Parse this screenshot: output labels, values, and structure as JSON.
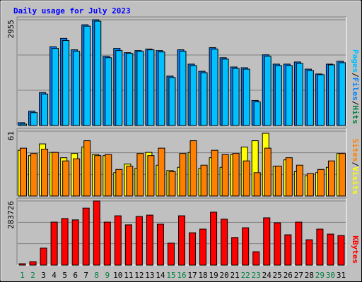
{
  "chart_data": [
    {
      "type": "bar",
      "title": "Daily usage for July 2023",
      "categories": [
        "1",
        "2",
        "3",
        "4",
        "5",
        "6",
        "7",
        "8",
        "9",
        "10",
        "11",
        "12",
        "13",
        "14",
        "15",
        "16",
        "17",
        "18",
        "19",
        "20",
        "21",
        "22",
        "23",
        "24",
        "25",
        "26",
        "27",
        "28",
        "29",
        "30",
        "31"
      ],
      "category_colors": [
        "#008040",
        "#008040",
        "#000000",
        "#000000",
        "#000000",
        "#000000",
        "#000000",
        "#008040",
        "#008040",
        "#000000",
        "#000000",
        "#000000",
        "#000000",
        "#000000",
        "#008040",
        "#008040",
        "#000000",
        "#000000",
        "#000000",
        "#000000",
        "#000000",
        "#008040",
        "#008040",
        "#000000",
        "#000000",
        "#000000",
        "#000000",
        "#000000",
        "#008040",
        "#008040",
        "#000000"
      ],
      "ylim": [
        0,
        2955
      ],
      "yticks": [
        2955
      ],
      "legend": [
        {
          "label": "Pages",
          "color": "#00c0ff"
        },
        {
          "label": "Files",
          "color": "#0080ff"
        },
        {
          "label": "Hits",
          "color": "#008040"
        }
      ],
      "series": [
        {
          "color": "#0080ff",
          "values": [
            80,
            400,
            920,
            2200,
            2435,
            2115,
            2815,
            2955,
            1935,
            2155,
            2035,
            2095,
            2135,
            2095,
            1380,
            2115,
            1715,
            1515,
            2175,
            1895,
            1635,
            1615,
            700,
            1975,
            1715,
            1715,
            1775,
            1575,
            1440,
            1715,
            1795
          ]
        },
        {
          "color": "#00c0ff",
          "values": [
            40,
            360,
            880,
            2155,
            2375,
            2075,
            2775,
            2915,
            1895,
            2095,
            2015,
            2075,
            2115,
            2055,
            1340,
            2075,
            1675,
            1475,
            2135,
            1855,
            1595,
            1575,
            660,
            1935,
            1675,
            1675,
            1735,
            1535,
            1420,
            1695,
            1755
          ]
        }
      ]
    },
    {
      "type": "bar",
      "ylim": [
        0,
        61
      ],
      "yticks": [
        61
      ],
      "legend": [
        {
          "label": "Sites",
          "color": "#ff8000"
        },
        {
          "label": "Visits",
          "color": "#ffff00"
        }
      ],
      "series": [
        {
          "color": "#ffff00",
          "values": [
            43,
            38,
            49,
            41,
            36,
            40,
            46,
            39,
            38,
            22,
            30,
            26,
            41,
            29,
            24,
            27,
            41,
            26,
            36,
            27,
            39,
            46,
            52,
            59,
            28,
            34,
            23,
            19,
            22,
            27,
            40
          ]
        },
        {
          "color": "#ff8000",
          "values": [
            45,
            40,
            44,
            41,
            33,
            35,
            52,
            38,
            39,
            25,
            28,
            40,
            38,
            45,
            23,
            40,
            52,
            29,
            43,
            39,
            40,
            33,
            22,
            45,
            28,
            36,
            29,
            21,
            25,
            33,
            40
          ]
        }
      ]
    },
    {
      "type": "bar",
      "ylim": [
        0,
        283726
      ],
      "yticks": [
        283726
      ],
      "legend": [
        {
          "label": "KBytes",
          "color": "#ff0000"
        }
      ],
      "series": [
        {
          "color": "#ff0000",
          "values": [
            6000,
            15000,
            75000,
            190000,
            206000,
            200000,
            252000,
            283726,
            190000,
            218000,
            178000,
            215000,
            221000,
            181000,
            97000,
            218000,
            143000,
            159000,
            234000,
            203000,
            122000,
            165000,
            59000,
            209000,
            187000,
            134000,
            190000,
            112000,
            159000,
            137000,
            131000
          ]
        }
      ]
    }
  ]
}
